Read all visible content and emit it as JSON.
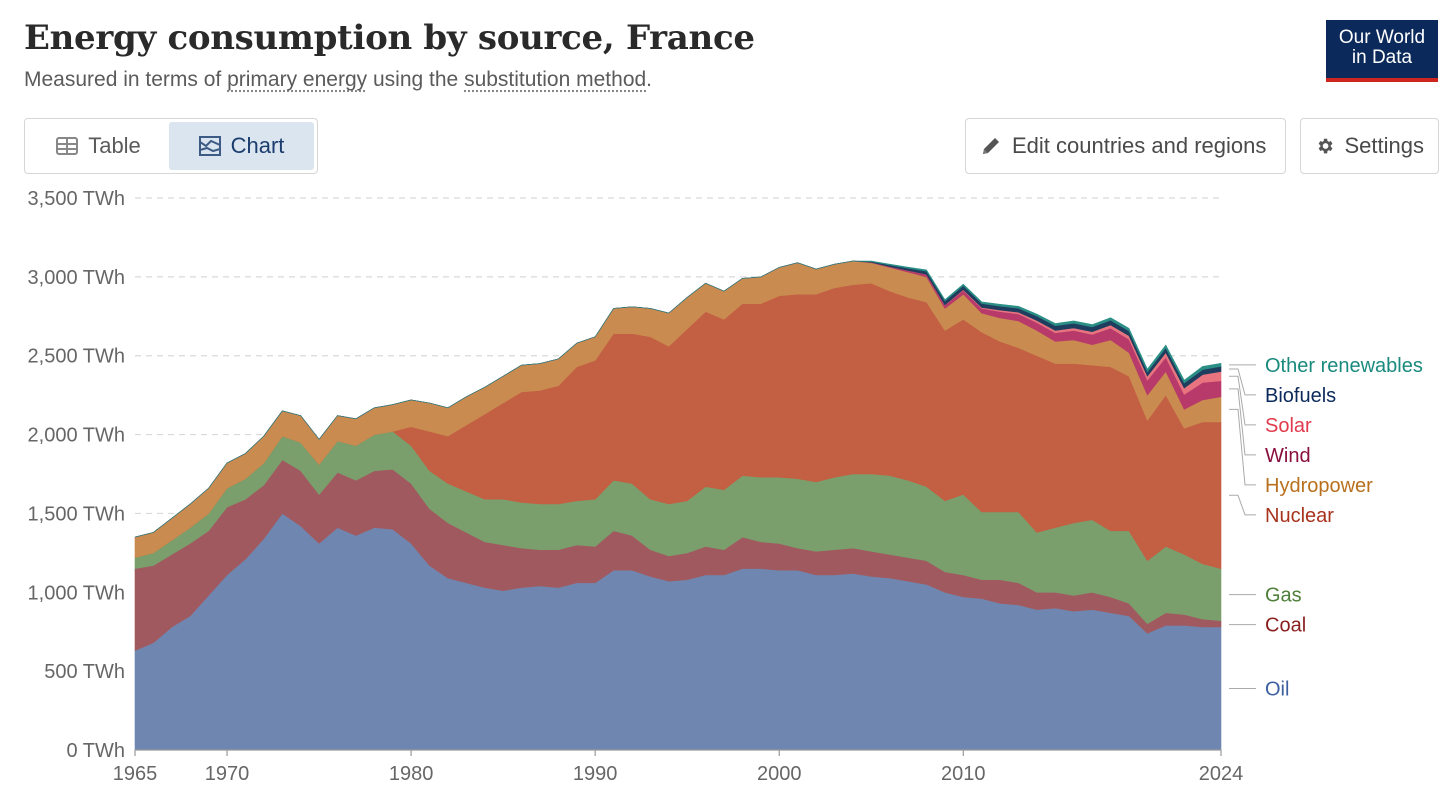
{
  "header": {
    "title": "Energy consumption by source, France",
    "subtitle_pre": "Measured in terms of ",
    "subtitle_link1": "primary energy",
    "subtitle_mid": " using the ",
    "subtitle_link2": "substitution method",
    "subtitle_post": ".",
    "logo_line1": "Our World",
    "logo_line2": "in Data"
  },
  "tabs": [
    {
      "label": "Table",
      "icon": "table-icon",
      "active": false
    },
    {
      "label": "Chart",
      "icon": "chart-icon",
      "active": true
    }
  ],
  "toolbar": {
    "edit_label": "Edit countries and regions",
    "settings_label": "Settings"
  },
  "colors": {
    "Oil": "#6f87b0",
    "Coal": "#a05a5f",
    "Gas": "#7a9f6c",
    "Nuclear": "#c35f43",
    "Hydropower": "#c98b4f",
    "Wind": "#b83a6a",
    "Solar": "#e8747f",
    "Biofuels": "#1f3d5e",
    "Other renewables": "#2b8f86"
  },
  "legend_colors": {
    "Oil": "#3c5fa0",
    "Coal": "#8a1f1f",
    "Gas": "#4f7f3a",
    "Nuclear": "#a8321c",
    "Hydropower": "#b8701e",
    "Wind": "#8a0f3c",
    "Solar": "#e03a4c",
    "Biofuels": "#0b2a5b",
    "Other renewables": "#1a8a7e"
  },
  "chart_data": {
    "type": "area",
    "stacked": true,
    "title": "Energy consumption by source, France",
    "ylabel": "",
    "xlabel": "",
    "ylim": [
      0,
      3500
    ],
    "xlim": [
      1965,
      2024
    ],
    "y_ticks": [
      "0 TWh",
      "500 TWh",
      "1,000 TWh",
      "1,500 TWh",
      "2,000 TWh",
      "2,500 TWh",
      "3,000 TWh",
      "3,500 TWh"
    ],
    "y_tick_values": [
      0,
      500,
      1000,
      1500,
      2000,
      2500,
      3000,
      3500
    ],
    "x_ticks": [
      "1965",
      "1970",
      "1980",
      "1990",
      "2000",
      "2010",
      "2024"
    ],
    "x_tick_values": [
      1965,
      1970,
      1980,
      1990,
      2000,
      2010,
      2024
    ],
    "grid": "horizontal dashed",
    "legend": "right, labels at series ends",
    "x": [
      1965,
      1966,
      1967,
      1968,
      1969,
      1970,
      1971,
      1972,
      1973,
      1974,
      1975,
      1976,
      1977,
      1978,
      1979,
      1980,
      1981,
      1982,
      1983,
      1984,
      1985,
      1986,
      1987,
      1988,
      1989,
      1990,
      1991,
      1992,
      1993,
      1994,
      1995,
      1996,
      1997,
      1998,
      1999,
      2000,
      2001,
      2002,
      2003,
      2004,
      2005,
      2006,
      2007,
      2008,
      2009,
      2010,
      2011,
      2012,
      2013,
      2014,
      2015,
      2016,
      2017,
      2018,
      2019,
      2020,
      2021,
      2022,
      2023,
      2024
    ],
    "series": [
      {
        "name": "Oil",
        "values": [
          630,
          680,
          780,
          850,
          980,
          1110,
          1210,
          1340,
          1500,
          1420,
          1310,
          1410,
          1360,
          1410,
          1400,
          1310,
          1170,
          1090,
          1060,
          1030,
          1010,
          1030,
          1040,
          1030,
          1060,
          1060,
          1140,
          1140,
          1100,
          1070,
          1080,
          1110,
          1110,
          1150,
          1150,
          1140,
          1140,
          1110,
          1110,
          1120,
          1100,
          1090,
          1070,
          1050,
          1000,
          970,
          960,
          930,
          920,
          890,
          900,
          880,
          890,
          870,
          850,
          740,
          790,
          790,
          780,
          780
        ]
      },
      {
        "name": "Coal",
        "values": [
          520,
          490,
          460,
          460,
          410,
          430,
          380,
          340,
          340,
          350,
          310,
          350,
          350,
          360,
          380,
          380,
          360,
          350,
          320,
          290,
          290,
          250,
          230,
          240,
          240,
          230,
          250,
          220,
          170,
          160,
          170,
          180,
          160,
          200,
          170,
          170,
          140,
          150,
          160,
          160,
          160,
          150,
          150,
          150,
          130,
          140,
          120,
          150,
          140,
          110,
          100,
          100,
          110,
          100,
          80,
          60,
          80,
          70,
          50,
          40
        ]
      },
      {
        "name": "Gas",
        "values": [
          70,
          80,
          90,
          100,
          110,
          120,
          130,
          140,
          150,
          180,
          190,
          200,
          220,
          230,
          240,
          240,
          240,
          250,
          260,
          270,
          290,
          290,
          290,
          290,
          280,
          300,
          320,
          330,
          320,
          330,
          330,
          380,
          380,
          390,
          410,
          420,
          440,
          440,
          460,
          470,
          490,
          500,
          490,
          470,
          450,
          510,
          430,
          430,
          450,
          380,
          410,
          460,
          460,
          420,
          460,
          400,
          420,
          380,
          350,
          330
        ]
      },
      {
        "name": "Nuclear",
        "values": [
          0,
          0,
          0,
          0,
          0,
          0,
          0,
          0,
          0,
          0,
          0,
          0,
          0,
          0,
          0,
          120,
          250,
          300,
          420,
          540,
          610,
          700,
          720,
          750,
          850,
          880,
          930,
          950,
          1030,
          1000,
          1090,
          1110,
          1080,
          1090,
          1100,
          1150,
          1170,
          1190,
          1200,
          1200,
          1210,
          1170,
          1160,
          1170,
          1080,
          1110,
          1140,
          1080,
          1040,
          1120,
          1040,
          1010,
          980,
          1040,
          980,
          890,
          960,
          800,
          900,
          930
        ]
      },
      {
        "name": "Hydropower",
        "values": [
          130,
          130,
          140,
          150,
          160,
          160,
          160,
          170,
          160,
          170,
          160,
          160,
          170,
          170,
          170,
          170,
          180,
          180,
          180,
          170,
          170,
          170,
          170,
          170,
          150,
          150,
          160,
          170,
          180,
          210,
          200,
          180,
          180,
          160,
          170,
          180,
          200,
          160,
          150,
          150,
          130,
          150,
          160,
          160,
          140,
          160,
          120,
          150,
          170,
          160,
          140,
          150,
          130,
          170,
          150,
          160,
          150,
          120,
          140,
          160
        ]
      },
      {
        "name": "Wind",
        "values": [
          0,
          0,
          0,
          0,
          0,
          0,
          0,
          0,
          0,
          0,
          0,
          0,
          0,
          0,
          0,
          0,
          0,
          0,
          0,
          0,
          0,
          0,
          0,
          0,
          0,
          0,
          0,
          0,
          0,
          0,
          0,
          0,
          0,
          0,
          0,
          0,
          0,
          0,
          0,
          0,
          2,
          5,
          10,
          15,
          20,
          25,
          30,
          40,
          45,
          50,
          55,
          60,
          65,
          75,
          85,
          95,
          90,
          95,
          110,
          100
        ]
      },
      {
        "name": "Solar",
        "values": [
          0,
          0,
          0,
          0,
          0,
          0,
          0,
          0,
          0,
          0,
          0,
          0,
          0,
          0,
          0,
          0,
          0,
          0,
          0,
          0,
          0,
          0,
          0,
          0,
          0,
          0,
          0,
          0,
          0,
          0,
          0,
          0,
          0,
          0,
          0,
          0,
          0,
          0,
          0,
          0,
          0,
          0,
          0,
          1,
          2,
          4,
          6,
          9,
          11,
          13,
          15,
          16,
          17,
          20,
          22,
          25,
          30,
          40,
          50,
          60
        ]
      },
      {
        "name": "Biofuels",
        "values": [
          0,
          0,
          0,
          0,
          0,
          0,
          0,
          0,
          0,
          0,
          0,
          0,
          0,
          0,
          0,
          0,
          0,
          0,
          0,
          0,
          0,
          0,
          0,
          0,
          0,
          0,
          0,
          0,
          0,
          0,
          0,
          0,
          0,
          0,
          0,
          0,
          0,
          0,
          0,
          0,
          5,
          10,
          15,
          20,
          25,
          25,
          25,
          25,
          25,
          28,
          30,
          30,
          30,
          30,
          30,
          28,
          30,
          32,
          32,
          32
        ]
      },
      {
        "name": "Other renewables",
        "values": [
          0,
          0,
          0,
          0,
          0,
          0,
          0,
          0,
          0,
          0,
          0,
          0,
          0,
          0,
          0,
          0,
          0,
          0,
          0,
          0,
          0,
          0,
          0,
          0,
          0,
          0,
          0,
          0,
          0,
          0,
          0,
          0,
          0,
          0,
          0,
          0,
          0,
          0,
          0,
          0,
          3,
          5,
          6,
          8,
          8,
          10,
          10,
          12,
          12,
          13,
          14,
          15,
          15,
          16,
          17,
          17,
          18,
          18,
          20,
          20
        ]
      }
    ]
  }
}
